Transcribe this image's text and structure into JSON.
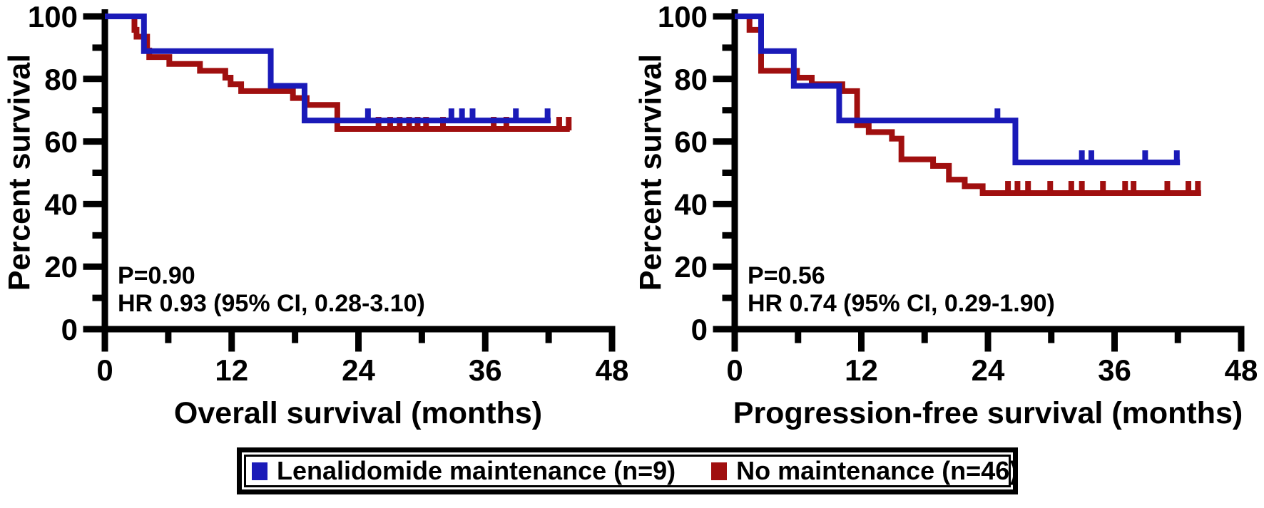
{
  "figure": {
    "background": "#ffffff",
    "axis_color": "#000000"
  },
  "legend": {
    "entries": [
      {
        "label": "Lenalidomide maintenance (n=9)",
        "color": "#1a1ab8"
      },
      {
        "label": "No maintenance (n=46)",
        "color": "#a00f0f"
      }
    ]
  },
  "chart_data": [
    {
      "type": "line",
      "subtype": "kaplan_meier_step",
      "panel": "overall-survival",
      "xlabel": "Overall survival (months)",
      "ylabel": "Percent survival",
      "xlim": [
        0,
        48
      ],
      "ylim": [
        0,
        100
      ],
      "xticks": [
        0,
        12,
        24,
        36,
        48
      ],
      "xminorticks": [
        6,
        18,
        30,
        42
      ],
      "yticks": [
        0,
        20,
        40,
        60,
        80,
        100
      ],
      "yminorticks": [
        10,
        30,
        50,
        70,
        90
      ],
      "grid": false,
      "annotations": {
        "p_value": "P=0.90",
        "hazard_ratio": "HR 0.93 (95% CI, 0.28-3.10)"
      },
      "series": [
        {
          "name": "No maintenance (n=46)",
          "color": "#a00f0f",
          "steps": [
            [
              0,
              100
            ],
            [
              2.8,
              95.7
            ],
            [
              3.0,
              93.5
            ],
            [
              4.0,
              89.1
            ],
            [
              4.2,
              87.0
            ],
            [
              6.1,
              84.8
            ],
            [
              9.0,
              82.6
            ],
            [
              11.4,
              80.4
            ],
            [
              11.9,
              78.3
            ],
            [
              12.9,
              76.1
            ],
            [
              17.8,
              73.9
            ],
            [
              19.1,
              71.7
            ],
            [
              22.0,
              64.0
            ]
          ],
          "end_month": 44.0,
          "censor_months": [
            25.9,
            27.0,
            27.9,
            28.8,
            29.6,
            30.4,
            32.0,
            36.8,
            38.0,
            43.0,
            43.9
          ]
        },
        {
          "name": "Lenalidomide maintenance (n=9)",
          "color": "#1a1ab8",
          "steps": [
            [
              0,
              100
            ],
            [
              3.7,
              88.9
            ],
            [
              15.7,
              77.8
            ],
            [
              18.9,
              66.7
            ]
          ],
          "end_month": 42.2,
          "censor_months": [
            24.9,
            32.8,
            33.8,
            34.8,
            38.9,
            41.9
          ]
        }
      ]
    },
    {
      "type": "line",
      "subtype": "kaplan_meier_step",
      "panel": "progression-free-survival",
      "xlabel": "Progression-free survival (months)",
      "ylabel": "Percent survival",
      "xlim": [
        0,
        48
      ],
      "ylim": [
        0,
        100
      ],
      "xticks": [
        0,
        12,
        24,
        36,
        48
      ],
      "xminorticks": [
        6,
        18,
        30,
        42
      ],
      "yticks": [
        0,
        20,
        40,
        60,
        80,
        100
      ],
      "yminorticks": [
        10,
        30,
        50,
        70,
        90
      ],
      "grid": false,
      "annotations": {
        "p_value": "P=0.56",
        "hazard_ratio": "HR 0.74 (95% CI, 0.29-1.90)"
      },
      "series": [
        {
          "name": "No maintenance (n=46)",
          "color": "#a00f0f",
          "steps": [
            [
              0,
              100
            ],
            [
              1.4,
              95.7
            ],
            [
              2.5,
              82.6
            ],
            [
              5.9,
              80.4
            ],
            [
              7.3,
              78.3
            ],
            [
              10.2,
              76.1
            ],
            [
              11.6,
              65.2
            ],
            [
              12.7,
              63.0
            ],
            [
              14.9,
              60.9
            ],
            [
              15.8,
              54.3
            ],
            [
              18.8,
              52.2
            ],
            [
              20.3,
              47.8
            ],
            [
              21.8,
              45.7
            ],
            [
              23.5,
              43.5
            ]
          ],
          "end_month": 44.2,
          "censor_months": [
            25.9,
            26.8,
            27.8,
            29.9,
            31.9,
            32.9,
            34.9,
            37.0,
            37.8,
            41.0,
            43.0,
            43.9
          ]
        },
        {
          "name": "Lenalidomide maintenance (n=9)",
          "color": "#1a1ab8",
          "steps": [
            [
              0,
              100
            ],
            [
              2.5,
              88.9
            ],
            [
              5.6,
              77.8
            ],
            [
              9.9,
              66.7
            ],
            [
              26.6,
              53.3
            ]
          ],
          "end_month": 42.2,
          "censor_months": [
            24.9,
            32.9,
            33.8,
            38.9,
            41.9
          ]
        }
      ]
    }
  ]
}
